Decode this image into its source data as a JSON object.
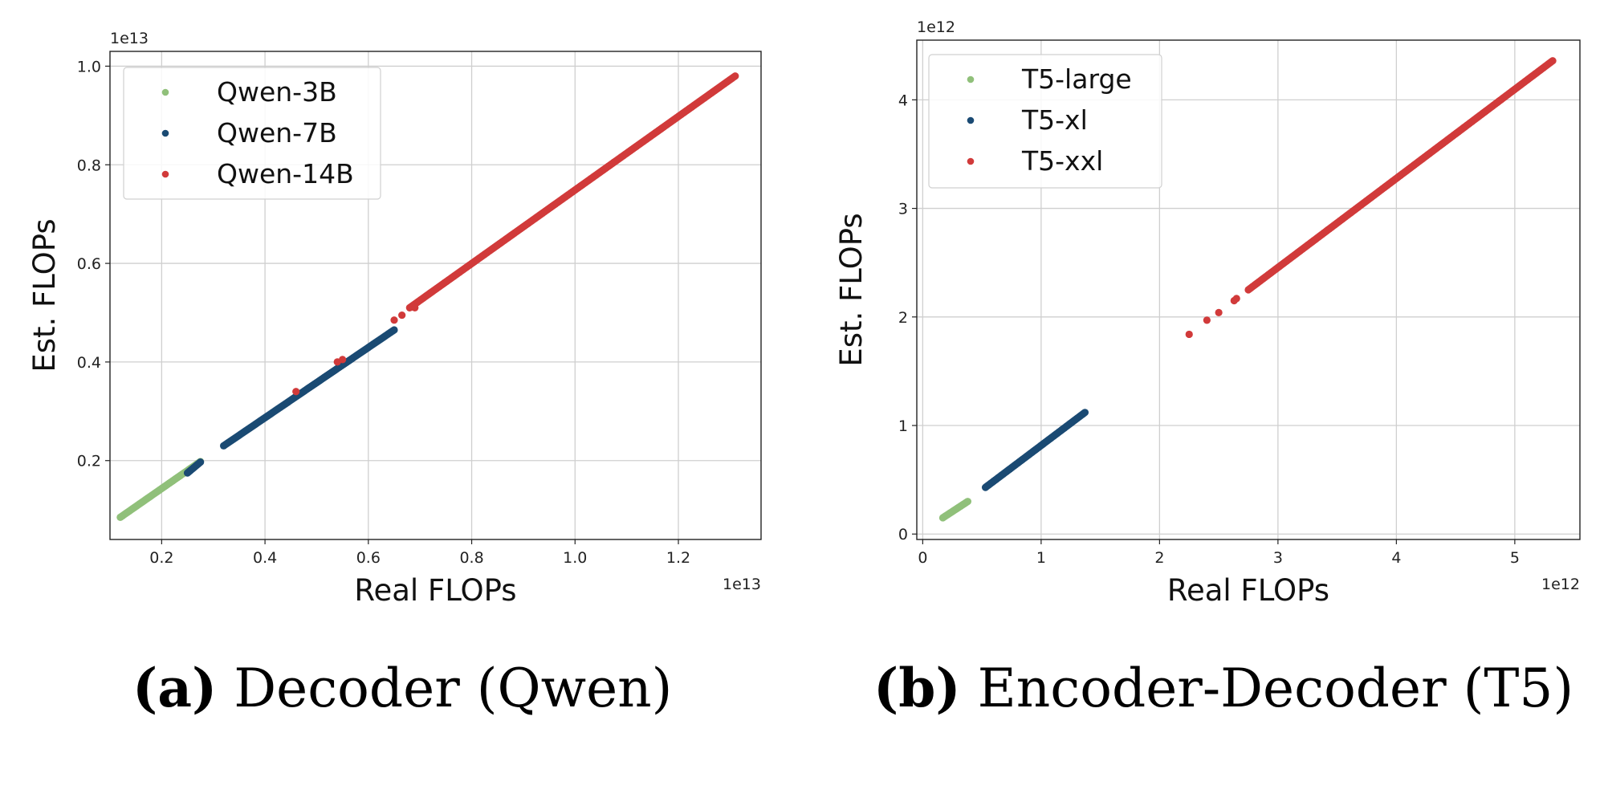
{
  "chart_data": [
    {
      "type": "scatter",
      "caption_tag": "(a)",
      "caption_text": "Decoder (Qwen)",
      "xlabel": "Real FLOPs",
      "ylabel": "Est. FLOPs",
      "x_exponent": "1e13",
      "y_exponent": "1e13",
      "xlim": [
        0.1,
        1.36
      ],
      "ylim": [
        0.04,
        1.03
      ],
      "xticks": [
        0.2,
        0.4,
        0.6,
        0.8,
        1.0,
        1.2
      ],
      "yticks": [
        0.2,
        0.4,
        0.6,
        0.8,
        1.0
      ],
      "xtick_labels": [
        "0.2",
        "0.4",
        "0.6",
        "0.8",
        "1.0",
        "1.2"
      ],
      "ytick_labels": [
        "0.2",
        "0.4",
        "0.6",
        "0.8",
        "1.0"
      ],
      "grid": true,
      "legend_position": "upper-left",
      "series": [
        {
          "name": "Qwen-3B",
          "color": "#90c07a",
          "segments": [
            [
              0.12,
              0.085,
              0.275,
              0.198
            ]
          ],
          "points": []
        },
        {
          "name": "Qwen-7B",
          "color": "#1a4a73",
          "segments": [
            [
              0.25,
              0.175,
              0.275,
              0.197
            ],
            [
              0.32,
              0.23,
              0.65,
              0.465
            ]
          ],
          "points": []
        },
        {
          "name": "Qwen-14B",
          "color": "#d13a3a",
          "segments": [
            [
              0.72,
              0.54,
              1.31,
              0.98
            ],
            [
              0.68,
              0.51,
              0.72,
              0.54
            ]
          ],
          "points": [
            [
              0.46,
              0.34
            ],
            [
              0.54,
              0.4
            ],
            [
              0.55,
              0.405
            ],
            [
              0.65,
              0.485
            ],
            [
              0.665,
              0.495
            ],
            [
              0.69,
              0.51
            ]
          ]
        }
      ]
    },
    {
      "type": "scatter",
      "caption_tag": "(b)",
      "caption_text": "Encoder-Decoder (T5)",
      "xlabel": "Real FLOPs",
      "ylabel": "Est. FLOPs",
      "x_exponent": "1e12",
      "y_exponent": "1e12",
      "xlim": [
        -0.05,
        5.55
      ],
      "ylim": [
        -0.05,
        4.55
      ],
      "xticks": [
        0,
        1,
        2,
        3,
        4,
        5
      ],
      "yticks": [
        0,
        1,
        2,
        3,
        4
      ],
      "xtick_labels": [
        "0",
        "1",
        "2",
        "3",
        "4",
        "5"
      ],
      "ytick_labels": [
        "0",
        "1",
        "2",
        "3",
        "4"
      ],
      "grid": true,
      "legend_position": "upper-left",
      "series": [
        {
          "name": "T5-large",
          "color": "#90c07a",
          "segments": [
            [
              0.17,
              0.15,
              0.38,
              0.3
            ]
          ],
          "points": []
        },
        {
          "name": "T5-xl",
          "color": "#1a4a73",
          "segments": [
            [
              0.53,
              0.43,
              1.37,
              1.12
            ]
          ],
          "points": []
        },
        {
          "name": "T5-xxl",
          "color": "#d13a3a",
          "segments": [
            [
              2.75,
              2.25,
              5.32,
              4.36
            ]
          ],
          "points": [
            [
              2.25,
              1.84
            ],
            [
              2.4,
              1.97
            ],
            [
              2.5,
              2.04
            ],
            [
              2.63,
              2.15
            ],
            [
              2.65,
              2.17
            ]
          ]
        }
      ]
    }
  ]
}
